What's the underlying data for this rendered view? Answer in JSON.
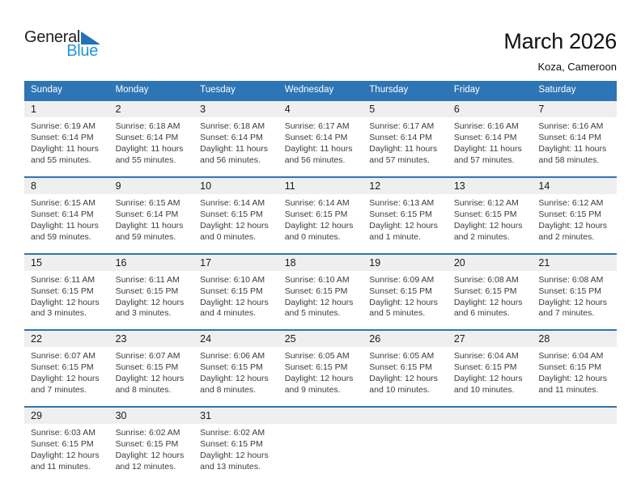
{
  "logo": {
    "word1": "General",
    "word2": "Blue",
    "triangle_icon": "blue-flag-triangle",
    "triangle_color": "#2071B8",
    "blue_color": "#2296D4"
  },
  "header": {
    "title": "March 2026",
    "subtitle": "Koza, Cameroon"
  },
  "calendar": {
    "colors": {
      "header_bg": "#2E75B5",
      "row_border": "#2E75B5",
      "daynum_bg": "#EFEFEF"
    },
    "weekday_headers": [
      "Sunday",
      "Monday",
      "Tuesday",
      "Wednesday",
      "Thursday",
      "Friday",
      "Saturday"
    ],
    "labels": {
      "sunrise": "Sunrise:",
      "sunset": "Sunset:",
      "daylight": "Daylight:"
    },
    "weeks": [
      [
        {
          "date": "1",
          "sunrise": "6:19 AM",
          "sunset": "6:14 PM",
          "daylight": "11 hours and 55 minutes."
        },
        {
          "date": "2",
          "sunrise": "6:18 AM",
          "sunset": "6:14 PM",
          "daylight": "11 hours and 55 minutes."
        },
        {
          "date": "3",
          "sunrise": "6:18 AM",
          "sunset": "6:14 PM",
          "daylight": "11 hours and 56 minutes."
        },
        {
          "date": "4",
          "sunrise": "6:17 AM",
          "sunset": "6:14 PM",
          "daylight": "11 hours and 56 minutes."
        },
        {
          "date": "5",
          "sunrise": "6:17 AM",
          "sunset": "6:14 PM",
          "daylight": "11 hours and 57 minutes."
        },
        {
          "date": "6",
          "sunrise": "6:16 AM",
          "sunset": "6:14 PM",
          "daylight": "11 hours and 57 minutes."
        },
        {
          "date": "7",
          "sunrise": "6:16 AM",
          "sunset": "6:14 PM",
          "daylight": "11 hours and 58 minutes."
        }
      ],
      [
        {
          "date": "8",
          "sunrise": "6:15 AM",
          "sunset": "6:14 PM",
          "daylight": "11 hours and 59 minutes."
        },
        {
          "date": "9",
          "sunrise": "6:15 AM",
          "sunset": "6:14 PM",
          "daylight": "11 hours and 59 minutes."
        },
        {
          "date": "10",
          "sunrise": "6:14 AM",
          "sunset": "6:15 PM",
          "daylight": "12 hours and 0 minutes."
        },
        {
          "date": "11",
          "sunrise": "6:14 AM",
          "sunset": "6:15 PM",
          "daylight": "12 hours and 0 minutes."
        },
        {
          "date": "12",
          "sunrise": "6:13 AM",
          "sunset": "6:15 PM",
          "daylight": "12 hours and 1 minute."
        },
        {
          "date": "13",
          "sunrise": "6:12 AM",
          "sunset": "6:15 PM",
          "daylight": "12 hours and 2 minutes."
        },
        {
          "date": "14",
          "sunrise": "6:12 AM",
          "sunset": "6:15 PM",
          "daylight": "12 hours and 2 minutes."
        }
      ],
      [
        {
          "date": "15",
          "sunrise": "6:11 AM",
          "sunset": "6:15 PM",
          "daylight": "12 hours and 3 minutes."
        },
        {
          "date": "16",
          "sunrise": "6:11 AM",
          "sunset": "6:15 PM",
          "daylight": "12 hours and 3 minutes."
        },
        {
          "date": "17",
          "sunrise": "6:10 AM",
          "sunset": "6:15 PM",
          "daylight": "12 hours and 4 minutes."
        },
        {
          "date": "18",
          "sunrise": "6:10 AM",
          "sunset": "6:15 PM",
          "daylight": "12 hours and 5 minutes."
        },
        {
          "date": "19",
          "sunrise": "6:09 AM",
          "sunset": "6:15 PM",
          "daylight": "12 hours and 5 minutes."
        },
        {
          "date": "20",
          "sunrise": "6:08 AM",
          "sunset": "6:15 PM",
          "daylight": "12 hours and 6 minutes."
        },
        {
          "date": "21",
          "sunrise": "6:08 AM",
          "sunset": "6:15 PM",
          "daylight": "12 hours and 7 minutes."
        }
      ],
      [
        {
          "date": "22",
          "sunrise": "6:07 AM",
          "sunset": "6:15 PM",
          "daylight": "12 hours and 7 minutes."
        },
        {
          "date": "23",
          "sunrise": "6:07 AM",
          "sunset": "6:15 PM",
          "daylight": "12 hours and 8 minutes."
        },
        {
          "date": "24",
          "sunrise": "6:06 AM",
          "sunset": "6:15 PM",
          "daylight": "12 hours and 8 minutes."
        },
        {
          "date": "25",
          "sunrise": "6:05 AM",
          "sunset": "6:15 PM",
          "daylight": "12 hours and 9 minutes."
        },
        {
          "date": "26",
          "sunrise": "6:05 AM",
          "sunset": "6:15 PM",
          "daylight": "12 hours and 10 minutes."
        },
        {
          "date": "27",
          "sunrise": "6:04 AM",
          "sunset": "6:15 PM",
          "daylight": "12 hours and 10 minutes."
        },
        {
          "date": "28",
          "sunrise": "6:04 AM",
          "sunset": "6:15 PM",
          "daylight": "12 hours and 11 minutes."
        }
      ],
      [
        {
          "date": "29",
          "sunrise": "6:03 AM",
          "sunset": "6:15 PM",
          "daylight": "12 hours and 11 minutes."
        },
        {
          "date": "30",
          "sunrise": "6:02 AM",
          "sunset": "6:15 PM",
          "daylight": "12 hours and 12 minutes."
        },
        {
          "date": "31",
          "sunrise": "6:02 AM",
          "sunset": "6:15 PM",
          "daylight": "12 hours and 13 minutes."
        },
        null,
        null,
        null,
        null
      ]
    ]
  }
}
